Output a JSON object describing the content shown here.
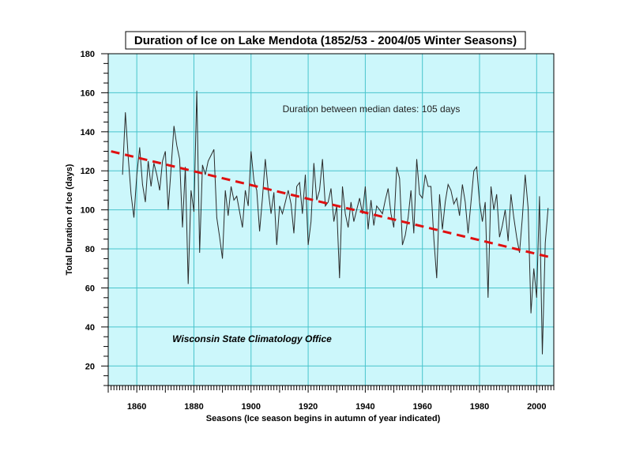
{
  "chart_data": {
    "type": "line",
    "title": "Duration of Ice on Lake Mendota (1852/53 - 2004/05 Winter Seasons)",
    "xlabel": "Seasons (Ice season begins in autumn of year indicated)",
    "ylabel": "Total Duration of Ice (days)",
    "xlim": [
      1850,
      2006
    ],
    "ylim": [
      10,
      180
    ],
    "x_ticks": [
      1860,
      1880,
      1900,
      1920,
      1940,
      1960,
      1980,
      2000
    ],
    "y_ticks": [
      20,
      40,
      60,
      80,
      100,
      120,
      140,
      160,
      180
    ],
    "grid": true,
    "annotations": [
      "Duration between median dates: 105 days",
      "Wisconsin State Climatology Office"
    ],
    "colors": {
      "plot_bg": "#ccf7fb",
      "grid": "#48c4cc",
      "series": "#2a2a2a",
      "trend": "#e01010"
    },
    "series": [
      {
        "type": "line",
        "x": [
          1855,
          1856,
          1857,
          1858,
          1859,
          1860,
          1861,
          1862,
          1863,
          1864,
          1865,
          1866,
          1867,
          1868,
          1869,
          1870,
          1871,
          1872,
          1873,
          1874,
          1875,
          1876,
          1877,
          1878,
          1879,
          1880,
          1881,
          1882,
          1883,
          1884,
          1885,
          1886,
          1887,
          1888,
          1889,
          1890,
          1891,
          1892,
          1893,
          1894,
          1895,
          1896,
          1897,
          1898,
          1899,
          1900,
          1901,
          1902,
          1903,
          1904,
          1905,
          1906,
          1907,
          1908,
          1909,
          1910,
          1911,
          1912,
          1913,
          1914,
          1915,
          1916,
          1917,
          1918,
          1919,
          1920,
          1921,
          1922,
          1923,
          1924,
          1925,
          1926,
          1927,
          1928,
          1929,
          1930,
          1931,
          1932,
          1933,
          1934,
          1935,
          1936,
          1937,
          1938,
          1939,
          1940,
          1941,
          1942,
          1943,
          1944,
          1945,
          1946,
          1947,
          1948,
          1949,
          1950,
          1951,
          1952,
          1953,
          1954,
          1955,
          1956,
          1957,
          1958,
          1959,
          1960,
          1961,
          1962,
          1963,
          1964,
          1965,
          1966,
          1967,
          1968,
          1969,
          1970,
          1971,
          1972,
          1973,
          1974,
          1975,
          1976,
          1977,
          1978,
          1979,
          1980,
          1981,
          1982,
          1983,
          1984,
          1985,
          1986,
          1987,
          1988,
          1989,
          1990,
          1991,
          1992,
          1993,
          1994,
          1995,
          1996,
          1997,
          1998,
          1999,
          2000,
          2001,
          2002,
          2003,
          2004
        ],
        "y": [
          118,
          150,
          127,
          108,
          96,
          118,
          132,
          113,
          104,
          125,
          112,
          124,
          118,
          110,
          125,
          130,
          100,
          121,
          143,
          133,
          126,
          91,
          122,
          62,
          110,
          99,
          161,
          78,
          123,
          118,
          125,
          128,
          131,
          96,
          86,
          75,
          110,
          97,
          112,
          105,
          107,
          99,
          91,
          110,
          102,
          130,
          115,
          110,
          89,
          106,
          126,
          110,
          98,
          109,
          82,
          102,
          98,
          104,
          110,
          103,
          88,
          112,
          114,
          98,
          118,
          82,
          94,
          124,
          105,
          110,
          126,
          102,
          104,
          111,
          94,
          102,
          65,
          112,
          98,
          91,
          104,
          94,
          100,
          106,
          98,
          112,
          90,
          105,
          92,
          102,
          100,
          98,
          105,
          111,
          98,
          91,
          122,
          116,
          82,
          87,
          96,
          110,
          88,
          126,
          108,
          106,
          118,
          112,
          112,
          85,
          65,
          108,
          90,
          104,
          113,
          110,
          103,
          106,
          97,
          113,
          104,
          88,
          104,
          120,
          122,
          104,
          94,
          104,
          55,
          112,
          100,
          108,
          86,
          92,
          100,
          84,
          108,
          96,
          86,
          78,
          96,
          118,
          101,
          47,
          70,
          55,
          107,
          26,
          83,
          101
        ]
      },
      {
        "type": "line",
        "style": "dashed",
        "x": [
          1851,
          2004
        ],
        "y": [
          130,
          76
        ]
      }
    ]
  }
}
